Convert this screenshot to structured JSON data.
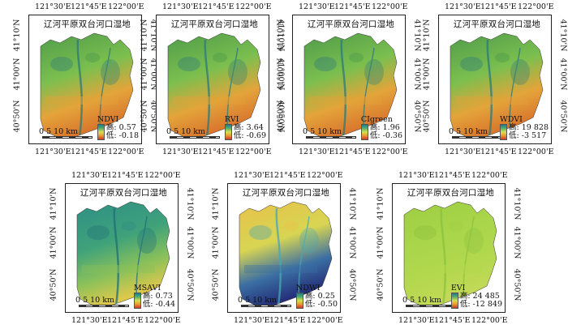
{
  "maps": [
    {
      "id": "ndvi",
      "title": "辽河平原双台河口湿地",
      "index": "NDVI",
      "high": "高: 0.57",
      "low": "低: -0.18",
      "ticks_top": [
        "121°30'E",
        "121°45'E",
        "122°00'E"
      ],
      "ticks_bottom": [
        "121°30'E",
        "121°45'E",
        "122°00'E"
      ],
      "ticks_left": [
        "41°10'N",
        "41°00'N",
        "40°50'N"
      ],
      "ticks_right": [
        "41°10'N",
        "41°00'N",
        "40°50'N"
      ],
      "scale": "0  5  10 km",
      "palette": "mixed"
    },
    {
      "id": "rvi",
      "title": "辽河平原双台河口湿地",
      "index": "RVI",
      "high": "高: 3.64",
      "low": "低: -0.69",
      "ticks_top": [
        "121°30'E",
        "121°45'E",
        "122°00'E"
      ],
      "ticks_bottom": [
        "121°30'E",
        "121°45'E",
        "122°00'E"
      ],
      "ticks_left": [
        "41°10'N",
        "41°00'N",
        "40°50'N"
      ],
      "ticks_right": [
        "41°10'N",
        "41°00'N",
        "40°50'N"
      ],
      "scale": "0  5  10 km",
      "palette": "mixed"
    },
    {
      "id": "cigreen",
      "title": "辽河平原双台河口湿地",
      "index": "CIgreen",
      "high": "高: 1.96",
      "low": "低: -0.36",
      "ticks_top": [
        "121°30'E",
        "121°45'E",
        "122°00'E"
      ],
      "ticks_bottom": [
        "121°30'E",
        "121°45'E",
        "122°00'E"
      ],
      "ticks_left": [
        "41°10'N",
        "41°00'N",
        "40°50'N"
      ],
      "ticks_right": [
        "41°10'N",
        "41°00'N",
        "40°50'N"
      ],
      "scale": "0  5  10 km",
      "palette": "mixed"
    },
    {
      "id": "wdvi",
      "title": "辽河平原双台河口湿地",
      "index": "WDVI",
      "high": "高: 19 828",
      "low": "低: -3 517",
      "ticks_top": [
        "121°30'E",
        "121°45'E",
        "122°00'E"
      ],
      "ticks_bottom": [
        "121°30'E",
        "121°45'E",
        "122°00'E"
      ],
      "ticks_left": [
        "41°10'N",
        "41°00'N",
        "40°50'N"
      ],
      "ticks_right": [
        "41°10'N",
        "41°00'N",
        "40°50'N"
      ],
      "scale": "0  5  10 km",
      "palette": "mixed"
    },
    {
      "id": "msavi",
      "title": "辽河平原双台河口湿地",
      "index": "MSAVI",
      "high": "高: 0.73",
      "low": "低: -0.44",
      "ticks_top": [
        "121°30'E",
        "121°45'E",
        "122°00'E"
      ],
      "ticks_bottom": [
        "121°30'E",
        "121°45'E",
        "122°00'E"
      ],
      "ticks_left": [
        "41°10'N",
        "41°00'N",
        "40°50'N"
      ],
      "ticks_right": [
        "41°10'N",
        "41°00'N",
        "40°50'N"
      ],
      "scale": "0  5  10 km",
      "palette": "teal"
    },
    {
      "id": "ndwi",
      "title": "辽河平原双台河口湿地",
      "index": "NDWI",
      "high": "高: 0.25",
      "low": "低: -0.50",
      "ticks_top": [
        "121°30'E",
        "121°45'E",
        "122°00'E"
      ],
      "ticks_bottom": [
        "121°30'E",
        "121°45'E",
        "122°00'E"
      ],
      "ticks_left": [
        "41°10'N",
        "41°00'N",
        "40°50'N"
      ],
      "ticks_right": [
        "41°10'N",
        "41°00'N",
        "40°50'N"
      ],
      "scale": "0  5  10 km",
      "palette": "yellow-blue"
    },
    {
      "id": "evi",
      "title": "辽河平原双台河口湿地",
      "index": "EVI",
      "high": "高: 24 485",
      "low": "低: -12 849",
      "ticks_top": [
        "121°30'E",
        "121°45'E",
        "122°00'E"
      ],
      "ticks_bottom": [
        "121°30'E",
        "121°45'E",
        "122°00'E"
      ],
      "ticks_left": [
        "41°10'N",
        "41°00'N",
        "40°50'N"
      ],
      "ticks_right": [
        "41°10'N",
        "41°00'N",
        "40°50'N"
      ],
      "scale": "0  5  10 km",
      "palette": "lime"
    }
  ]
}
